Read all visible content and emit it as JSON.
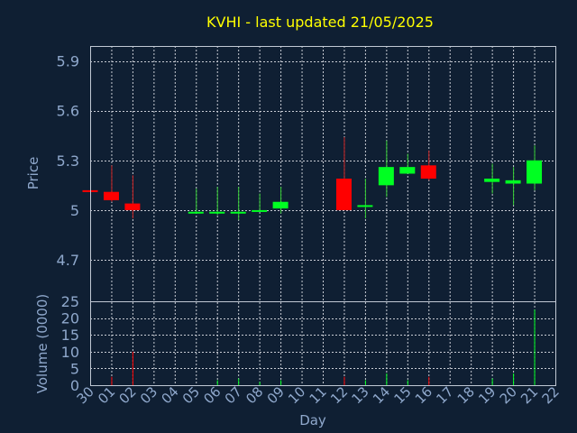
{
  "chart_data": [
    {
      "type": "candlestick",
      "title": "KVHI - last updated 21/05/2025",
      "ylabel": "Price",
      "ylim": [
        4.45,
        5.99
      ],
      "yticks": [
        4.7,
        5,
        5.3,
        5.6,
        5.9
      ],
      "ytick_labels": [
        "4.7",
        "5",
        "5.3",
        "5.6",
        "5.9"
      ],
      "grid": true,
      "categories": [
        "30",
        "01",
        "02",
        "03",
        "04",
        "05",
        "06",
        "07",
        "08",
        "09",
        "10",
        "11",
        "12",
        "13",
        "14",
        "15",
        "16",
        "17",
        "18",
        "19",
        "20",
        "21",
        "22"
      ],
      "candles": [
        {
          "day": "30",
          "open": 5.12,
          "close": 5.11,
          "high": 5.12,
          "low": 5.11
        },
        {
          "day": "01",
          "open": 5.11,
          "close": 5.06,
          "high": 5.27,
          "low": 5.05
        },
        {
          "day": "02",
          "open": 5.04,
          "close": 5.0,
          "high": 5.21,
          "low": 4.95
        },
        {
          "day": "05",
          "open": 4.98,
          "close": 4.99,
          "high": 5.13,
          "low": 4.98
        },
        {
          "day": "06",
          "open": 4.98,
          "close": 4.99,
          "high": 5.14,
          "low": 4.97
        },
        {
          "day": "07",
          "open": 4.98,
          "close": 4.99,
          "high": 5.14,
          "low": 4.94
        },
        {
          "day": "08",
          "open": 4.99,
          "close": 5.0,
          "high": 5.1,
          "low": 4.99
        },
        {
          "day": "09",
          "open": 5.01,
          "close": 5.05,
          "high": 5.14,
          "low": 4.98
        },
        {
          "day": "12",
          "open": 5.19,
          "close": 5.0,
          "high": 5.44,
          "low": 5.0
        },
        {
          "day": "13",
          "open": 5.02,
          "close": 5.03,
          "high": 5.19,
          "low": 4.95
        },
        {
          "day": "14",
          "open": 5.15,
          "close": 5.26,
          "high": 5.42,
          "low": 5.08
        },
        {
          "day": "15",
          "open": 5.22,
          "close": 5.26,
          "high": 5.34,
          "low": 5.22
        },
        {
          "day": "16",
          "open": 5.27,
          "close": 5.19,
          "high": 5.36,
          "low": 5.18
        },
        {
          "day": "19",
          "open": 5.17,
          "close": 5.19,
          "high": 5.28,
          "low": 5.1
        },
        {
          "day": "20",
          "open": 5.16,
          "close": 5.18,
          "high": 5.26,
          "low": 5.03
        },
        {
          "day": "21",
          "open": 5.16,
          "close": 5.3,
          "high": 5.39,
          "low": 5.12
        }
      ]
    },
    {
      "type": "bar",
      "ylabel": "Volume (0000)",
      "xlabel": "Day",
      "ylim": [
        0,
        25
      ],
      "yticks": [
        0,
        5,
        10,
        15,
        20,
        25
      ],
      "ytick_labels": [
        "0",
        "5",
        "10",
        "15",
        "20",
        "25"
      ],
      "grid": true,
      "categories": [
        "30",
        "01",
        "02",
        "03",
        "04",
        "05",
        "06",
        "07",
        "08",
        "09",
        "10",
        "11",
        "12",
        "13",
        "14",
        "15",
        "16",
        "17",
        "18",
        "19",
        "20",
        "21",
        "22"
      ],
      "bars": [
        {
          "day": "01",
          "value": 2.5,
          "direction": "down"
        },
        {
          "day": "02",
          "value": 10,
          "direction": "down"
        },
        {
          "day": "06",
          "value": 1.5,
          "direction": "up"
        },
        {
          "day": "07",
          "value": 2,
          "direction": "up"
        },
        {
          "day": "08",
          "value": 1,
          "direction": "up"
        },
        {
          "day": "09",
          "value": 1.5,
          "direction": "up"
        },
        {
          "day": "12",
          "value": 2.5,
          "direction": "down"
        },
        {
          "day": "13",
          "value": 1.5,
          "direction": "up"
        },
        {
          "day": "14",
          "value": 3.5,
          "direction": "up"
        },
        {
          "day": "15",
          "value": 1.5,
          "direction": "up"
        },
        {
          "day": "16",
          "value": 2.5,
          "direction": "down"
        },
        {
          "day": "19",
          "value": 2,
          "direction": "up"
        },
        {
          "day": "20",
          "value": 3.5,
          "direction": "up"
        },
        {
          "day": "21",
          "value": 22.5,
          "direction": "up"
        }
      ]
    }
  ],
  "colors": {
    "background": "#0f1f33",
    "title": "#ffff00",
    "axis_text": "#8fa8cc",
    "frame": "#c0c8d4",
    "grid": "#c8ccd4",
    "up": "#00ff22",
    "down": "#ff0000",
    "wick_up": "#33cc33",
    "wick_down": "#cc2222"
  }
}
